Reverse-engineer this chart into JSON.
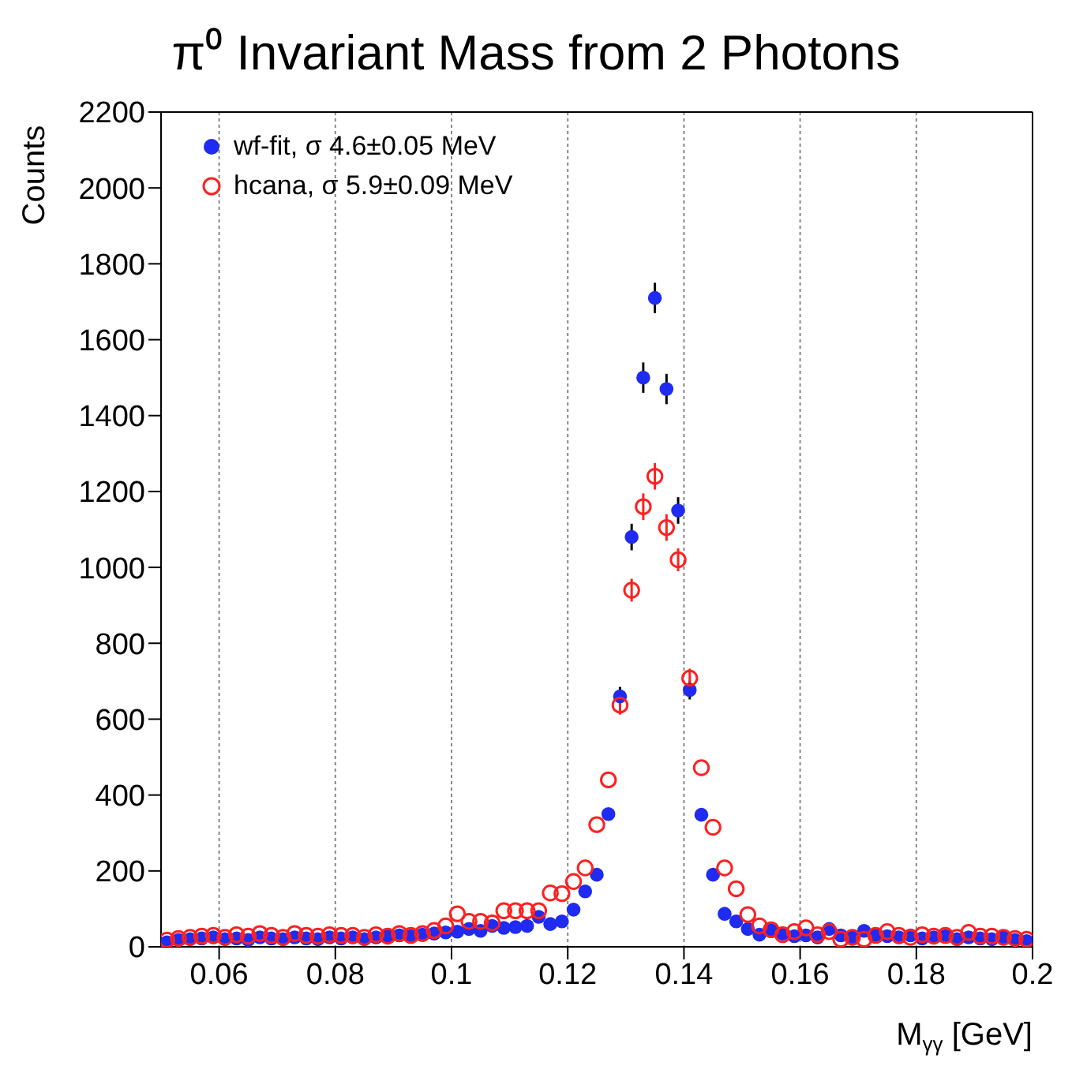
{
  "chart_data": {
    "type": "scatter",
    "title": "π⁰ Invariant Mass from 2 Photons",
    "xlabel": "M$_{γγ}$ [GeV]",
    "ylabel": "Counts",
    "x": [
      0.051,
      0.053,
      0.055,
      0.057,
      0.059,
      0.061,
      0.063,
      0.065,
      0.067,
      0.069,
      0.071,
      0.073,
      0.075,
      0.077,
      0.079,
      0.081,
      0.083,
      0.085,
      0.087,
      0.089,
      0.091,
      0.093,
      0.095,
      0.097,
      0.099,
      0.101,
      0.103,
      0.105,
      0.107,
      0.109,
      0.111,
      0.113,
      0.115,
      0.117,
      0.119,
      0.121,
      0.123,
      0.125,
      0.127,
      0.129,
      0.131,
      0.133,
      0.135,
      0.137,
      0.139,
      0.141,
      0.143,
      0.145,
      0.147,
      0.149,
      0.151,
      0.153,
      0.155,
      0.157,
      0.159,
      0.161,
      0.163,
      0.165,
      0.167,
      0.169,
      0.171,
      0.173,
      0.175,
      0.177,
      0.179,
      0.181,
      0.183,
      0.185,
      0.187,
      0.189,
      0.191,
      0.193,
      0.195,
      0.197,
      0.199
    ],
    "series": [
      {
        "name": "wf-fit, σ 4.6±0.05 MeV",
        "color": "#1f2bf0",
        "values": [
          12,
          18,
          20,
          22,
          25,
          20,
          22,
          18,
          25,
          22,
          20,
          25,
          22,
          20,
          25,
          22,
          25,
          20,
          25,
          28,
          30,
          28,
          32,
          35,
          38,
          40,
          47,
          42,
          55,
          50,
          52,
          55,
          79,
          60,
          67,
          98,
          146,
          190,
          350,
          660,
          1080,
          1500,
          1710,
          1470,
          1150,
          677,
          348,
          190,
          87,
          67,
          47,
          32,
          43,
          35,
          28,
          30,
          25,
          47,
          30,
          25,
          42,
          30,
          28,
          25,
          30,
          22,
          25,
          28,
          20,
          25,
          22,
          20,
          25,
          18,
          15
        ],
        "errors": [
          null,
          null,
          null,
          null,
          null,
          null,
          null,
          null,
          null,
          null,
          null,
          null,
          null,
          null,
          null,
          null,
          null,
          null,
          null,
          null,
          null,
          null,
          null,
          null,
          null,
          null,
          null,
          null,
          null,
          null,
          null,
          null,
          null,
          null,
          null,
          null,
          null,
          null,
          null,
          25,
          35,
          40,
          40,
          40,
          35,
          25,
          null,
          null,
          null,
          null,
          null,
          null,
          null,
          null,
          null,
          null,
          null,
          null,
          null,
          null,
          null,
          null,
          null,
          null,
          null,
          null,
          null,
          null,
          null,
          null,
          null,
          null,
          null,
          null,
          null
        ]
      },
      {
        "name": "hcana, σ 5.9±0.09 MeV",
        "color": "#ff2020",
        "values": [
          18,
          22,
          25,
          28,
          30,
          25,
          32,
          28,
          35,
          30,
          25,
          35,
          30,
          28,
          32,
          30,
          30,
          25,
          32,
          28,
          35,
          30,
          35,
          43,
          55,
          87,
          67,
          67,
          63,
          95,
          95,
          95,
          95,
          142,
          140,
          172,
          208,
          322,
          440,
          637,
          940,
          1160,
          1240,
          1105,
          1020,
          708,
          472,
          315,
          208,
          153,
          85,
          55,
          45,
          32,
          40,
          50,
          32,
          40,
          20,
          25,
          20,
          30,
          40,
          30,
          25,
          32,
          28,
          30,
          25,
          38,
          28,
          28,
          25,
          22,
          20
        ],
        "errors": [
          null,
          null,
          null,
          null,
          null,
          null,
          null,
          null,
          null,
          null,
          null,
          null,
          null,
          null,
          null,
          null,
          null,
          null,
          null,
          null,
          null,
          null,
          null,
          null,
          null,
          null,
          null,
          null,
          null,
          null,
          null,
          null,
          null,
          null,
          null,
          null,
          null,
          null,
          null,
          25,
          30,
          35,
          35,
          35,
          30,
          25,
          null,
          null,
          null,
          null,
          null,
          null,
          null,
          null,
          null,
          null,
          null,
          null,
          null,
          null,
          null,
          null,
          null,
          null,
          null,
          null,
          null,
          null,
          null,
          null,
          null,
          null,
          null,
          null,
          null
        ]
      }
    ],
    "xlim": [
      0.05,
      0.2
    ],
    "xticks": [
      0.06,
      0.08,
      0.1,
      0.12,
      0.14,
      0.16,
      0.18,
      0.2
    ],
    "ylim": [
      0,
      2200
    ],
    "yticks": [
      0,
      200,
      400,
      600,
      800,
      1000,
      1200,
      1400,
      1600,
      1800,
      2000,
      2200
    ],
    "grid": "x",
    "legend": "top left",
    "marker": "circle"
  }
}
